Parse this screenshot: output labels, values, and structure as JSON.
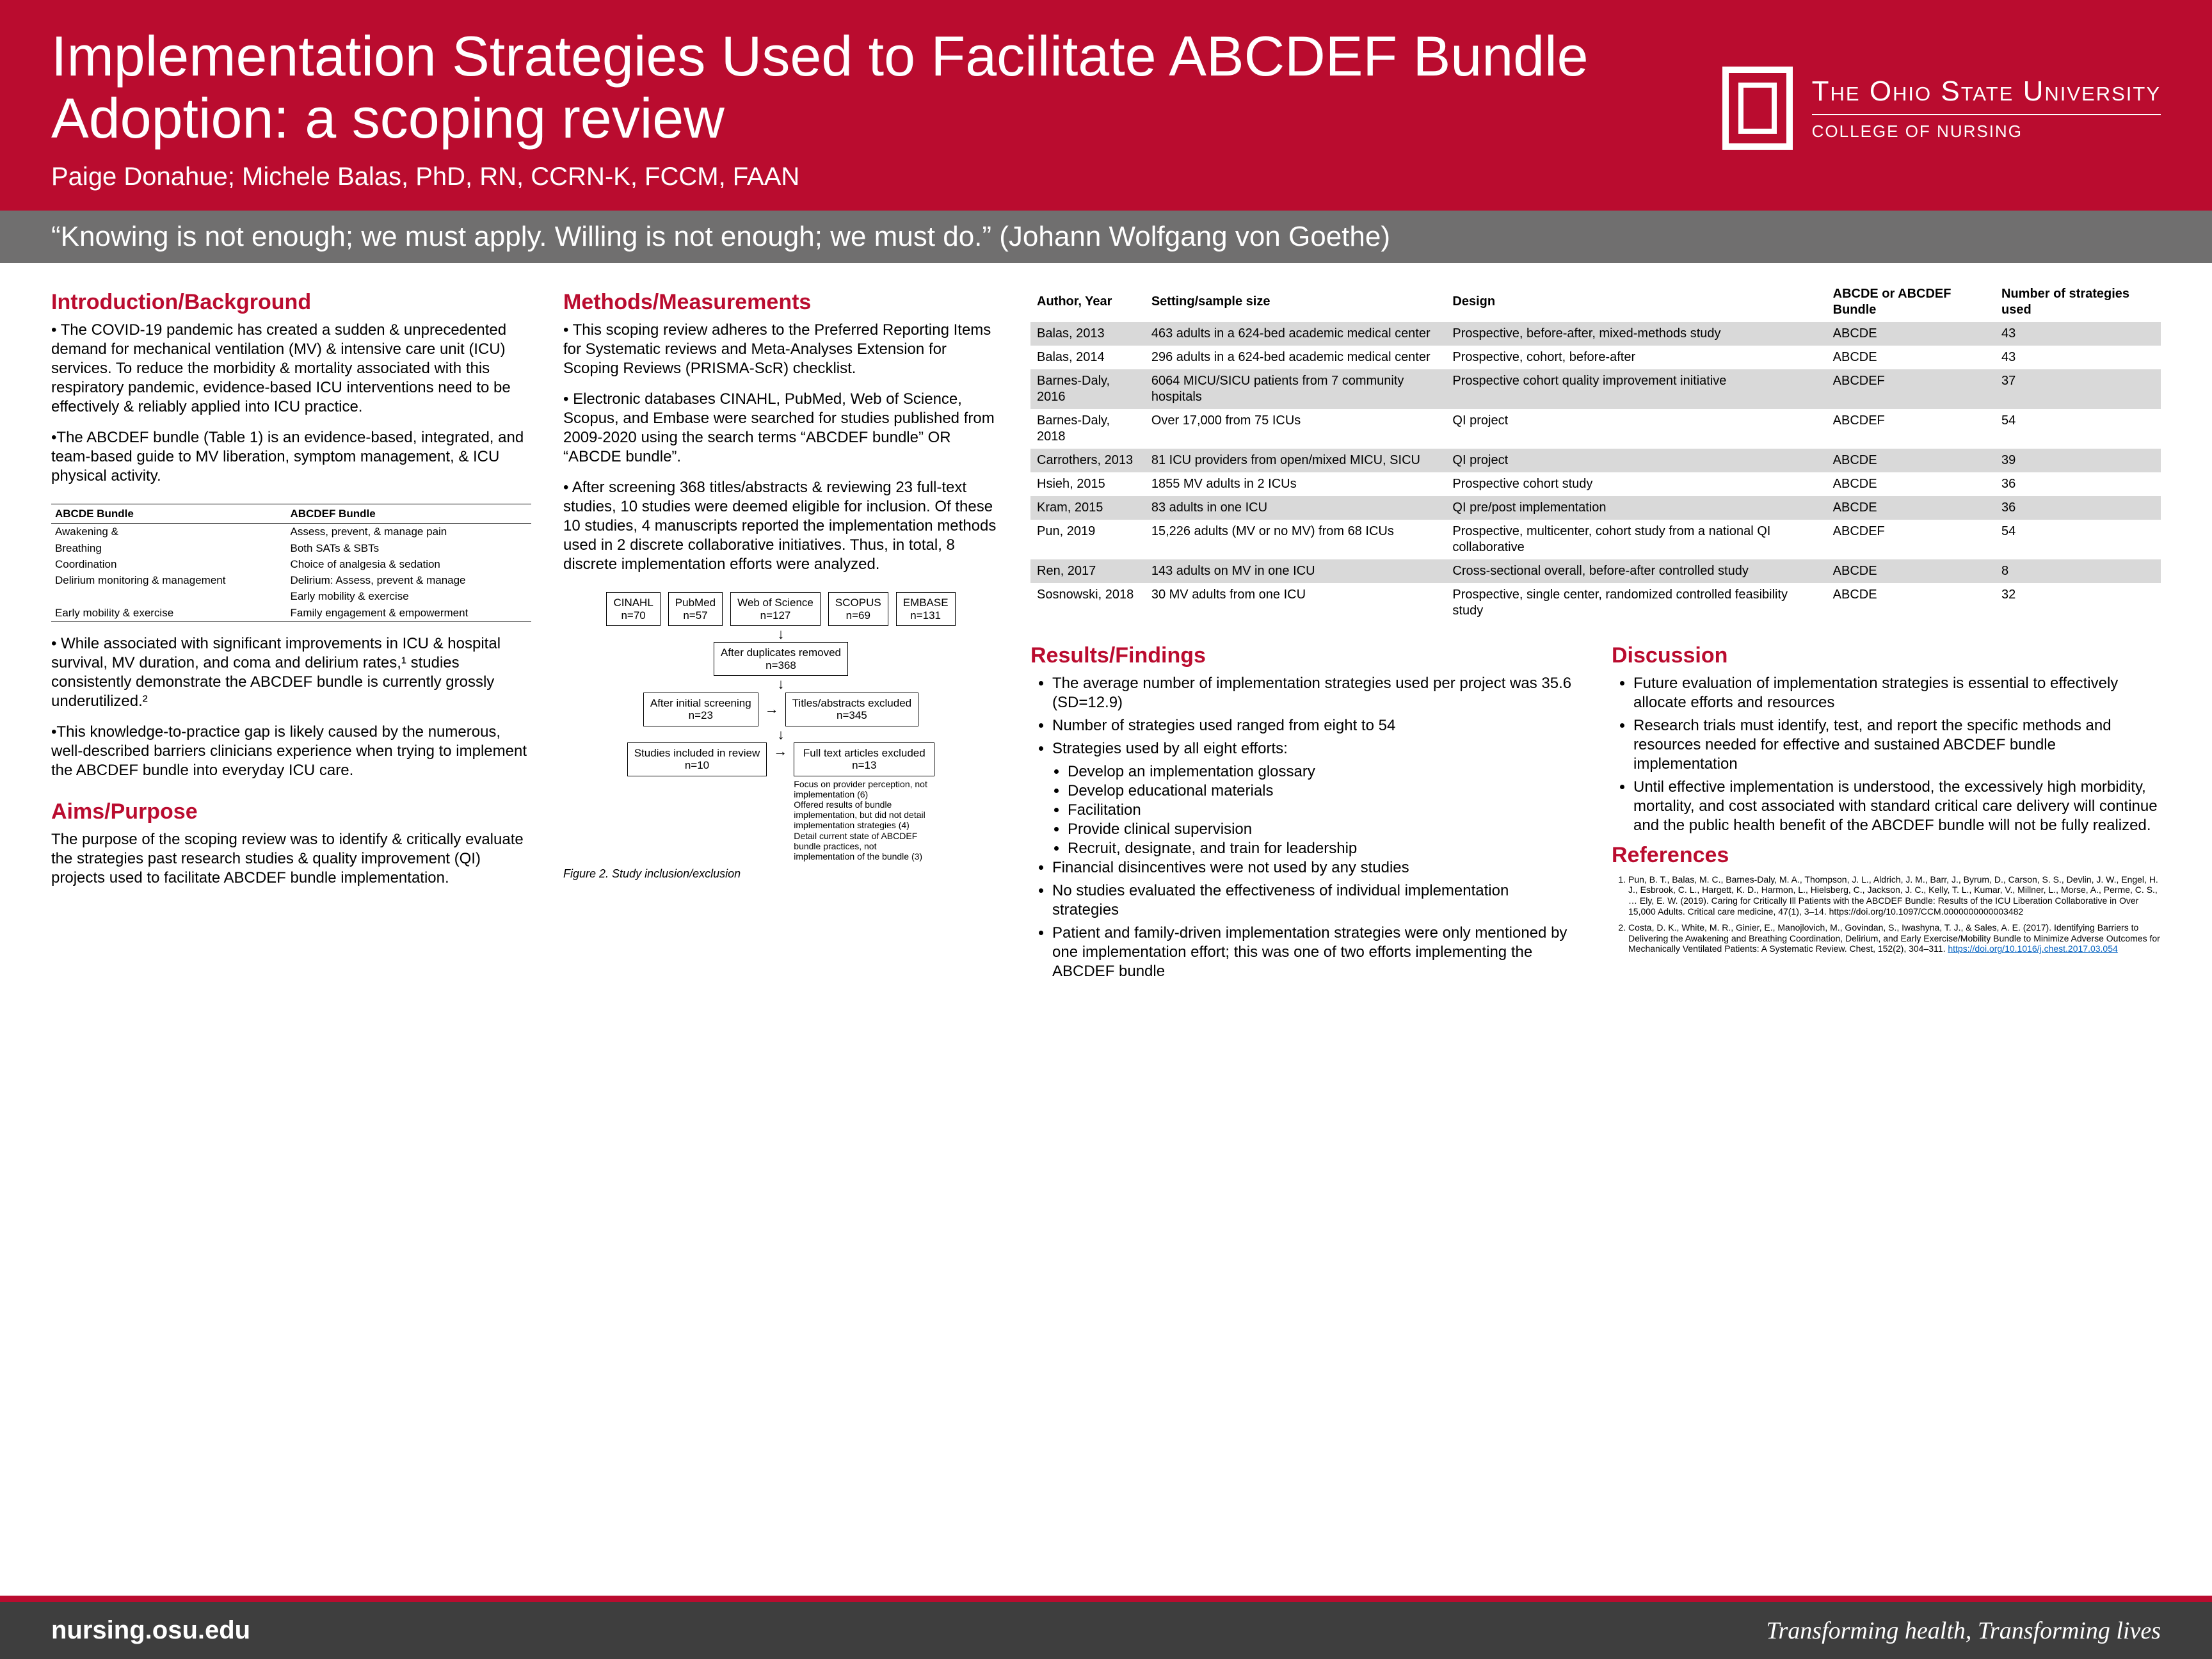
{
  "header": {
    "title": "Implementation Strategies Used to Facilitate ABCDEF Bundle Adoption: a scoping review",
    "authors": "Paige Donahue; Michele Balas, PhD, RN, CCRN-K, FCCM, FAAN",
    "university": "The Ohio State University",
    "college": "COLLEGE OF NURSING"
  },
  "quote": "“Knowing is not enough; we must apply. Willing is not enough; we must do.” (Johann Wolfgang von Goethe)",
  "intro": {
    "heading": "Introduction/Background",
    "p1": "• The COVID-19 pandemic has created a sudden & unprecedented demand for mechanical ventilation (MV) & intensive care unit (ICU) services. To reduce the morbidity & mortality associated with this respiratory pandemic, evidence-based ICU interventions need to be effectively & reliably applied into ICU practice.",
    "p2": "•The ABCDEF bundle (Table 1) is an evidence-based, integrated, and team-based guide to MV liberation, symptom management, & ICU physical activity.",
    "p3": "• While associated with significant improvements in ICU & hospital survival, MV duration, and coma and delirium rates,¹ studies consistently demonstrate the ABCDEF bundle is currently grossly underutilized.²",
    "p4": "•This knowledge-to-practice gap is likely caused by the numerous, well-described barriers clinicians experience when trying to implement the ABCDEF bundle into everyday ICU care."
  },
  "bundle": {
    "h1": "ABCDE Bundle",
    "h2": "ABCDEF Bundle",
    "rows": [
      [
        "Awakening &",
        "Assess, prevent, & manage pain"
      ],
      [
        "Breathing",
        "Both SATs & SBTs"
      ],
      [
        "Coordination",
        "Choice of analgesia & sedation"
      ],
      [
        "Delirium monitoring & management",
        "Delirium: Assess, prevent & manage"
      ],
      [
        "",
        "Early mobility & exercise"
      ],
      [
        "Early mobility & exercise",
        "Family engagement & empowerment"
      ]
    ]
  },
  "aims": {
    "heading": "Aims/Purpose",
    "p": "The purpose of the scoping review was to identify & critically evaluate the strategies past research studies & quality improvement (QI) projects used to facilitate ABCDEF bundle implementation."
  },
  "methods": {
    "heading": "Methods/Measurements",
    "p1": "• This scoping review adheres to the Preferred Reporting Items for Systematic reviews and Meta-Analyses Extension for Scoping Reviews (PRISMA-ScR) checklist.",
    "p2": "• Electronic databases CINAHL, PubMed, Web of Science, Scopus, and Embase were searched for studies published from 2009-2020 using the search terms “ABCDEF bundle” OR “ABCDE bundle”.",
    "p3": "• After screening 368 titles/abstracts & reviewing 23 full-text studies, 10 studies were deemed eligible for inclusion. Of these 10 studies, 4 manuscripts reported the implementation methods used in 2 discrete collaborative initiatives. Thus, in total, 8 discrete implementation efforts were analyzed."
  },
  "flow": {
    "db": [
      {
        "name": "CINAHL",
        "n": "n=70"
      },
      {
        "name": "PubMed",
        "n": "n=57"
      },
      {
        "name": "Web of Science",
        "n": "n=127"
      },
      {
        "name": "SCOPUS",
        "n": "n=69"
      },
      {
        "name": "EMBASE",
        "n": "n=131"
      }
    ],
    "dup": "After duplicates removed\nn=368",
    "screen": "After initial screening\nn=23",
    "excl1": "Titles/abstracts excluded\nn=345",
    "inc": "Studies included in review\nn=10",
    "excl2t": "Full text articles excluded\nn=13",
    "excl2d": "Focus on provider perception, not implementation (6)\nOffered results of bundle implementation, but did not detail implementation strategies (4)\nDetail current state of ABCDEF bundle practices, not implementation of the bundle (3)",
    "caption": "Figure 2. Study inclusion/exclusion"
  },
  "studies": {
    "headers": [
      "Author, Year",
      "Setting/sample size",
      "Design",
      "ABCDE or ABCDEF Bundle",
      "Number of strategies used"
    ],
    "rows": [
      [
        "Balas, 2013",
        "463 adults in a 624-bed academic medical center",
        "Prospective, before-after, mixed-methods study",
        "ABCDE",
        "43"
      ],
      [
        "Balas, 2014",
        "296 adults in a 624-bed academic medical center",
        "Prospective, cohort, before-after",
        "ABCDE",
        "43"
      ],
      [
        "Barnes-Daly, 2016",
        "6064 MICU/SICU patients from 7 community hospitals",
        "Prospective cohort quality improvement initiative",
        "ABCDEF",
        "37"
      ],
      [
        "Barnes-Daly, 2018",
        "Over 17,000 from 75 ICUs",
        "QI project",
        "ABCDEF",
        "54"
      ],
      [
        "Carrothers, 2013",
        "81 ICU providers from open/mixed MICU, SICU",
        "QI project",
        "ABCDE",
        "39"
      ],
      [
        "Hsieh, 2015",
        "1855 MV adults in 2 ICUs",
        "Prospective cohort study",
        "ABCDE",
        "36"
      ],
      [
        "Kram, 2015",
        "83 adults in one ICU",
        "QI pre/post implementation",
        "ABCDE",
        "36"
      ],
      [
        "Pun, 2019",
        "15,226 adults (MV or no MV) from 68 ICUs",
        "Prospective, multicenter, cohort study from a national QI collaborative",
        "ABCDEF",
        "54"
      ],
      [
        "Ren, 2017",
        "143 adults on MV in one ICU",
        "Cross-sectional overall, before-after controlled study",
        "ABCDE",
        "8"
      ],
      [
        "Sosnowski, 2018",
        "30 MV adults from one ICU",
        "Prospective, single center, randomized controlled feasibility study",
        "ABCDE",
        "32"
      ]
    ]
  },
  "results": {
    "heading": "Results/Findings",
    "items": [
      "The average number of implementation strategies used per project was 35.6 (SD=12.9)",
      "Number of strategies used ranged from eight to 54",
      "Strategies used by all eight efforts:",
      "Financial disincentives were not used by any studies",
      "No studies evaluated the effectiveness of individual implementation strategies",
      "Patient and family-driven implementation strategies were only mentioned by one implementation effort; this was one of two efforts implementing the ABCDEF bundle"
    ],
    "sub": [
      "Develop an implementation glossary",
      "Develop educational materials",
      "Facilitation",
      "Provide clinical supervision",
      "Recruit, designate, and train for leadership"
    ]
  },
  "discussion": {
    "heading": "Discussion",
    "items": [
      "Future evaluation of implementation strategies is essential to effectively allocate efforts and resources",
      "Research trials must identify, test, and report the specific methods and resources needed for effective and sustained ABCDEF bundle implementation",
      "Until effective implementation is understood, the excessively high morbidity, mortality, and cost associated with standard critical care delivery will continue and the public health benefit of the ABCDEF bundle will not be fully realized."
    ]
  },
  "refs": {
    "heading": "References",
    "r1": "Pun, B. T., Balas, M. C., Barnes-Daly, M. A., Thompson, J. L., Aldrich, J. M., Barr, J., Byrum, D., Carson, S. S., Devlin, J. W., Engel, H. J., Esbrook, C. L., Hargett, K. D., Harmon, L., Hielsberg, C., Jackson, J. C., Kelly, T. L., Kumar, V., Millner, L., Morse, A., Perme, C. S., … Ely, E. W. (2019). Caring for Critically Ill Patients with the ABCDEF Bundle: Results of the ICU Liberation Collaborative in Over 15,000 Adults. Critical care medicine, 47(1), 3–14. https://doi.org/10.1097/CCM.0000000000003482",
    "r2": "Costa, D. K., White, M. R., Ginier, E., Manojlovich, M., Govindan, S., Iwashyna, T. J., & Sales, A. E. (2017). Identifying Barriers to Delivering the Awakening and Breathing Coordination, Delirium, and Early Exercise/Mobility Bundle to Minimize Adverse Outcomes for Mechanically Ventilated Patients: A Systematic Review. Chest, 152(2), 304–311.",
    "r2link": "https://doi.org/10.1016/j.chest.2017.03.054"
  },
  "footer": {
    "left": "nursing.osu.edu",
    "right": "Transforming health, Transforming lives"
  }
}
